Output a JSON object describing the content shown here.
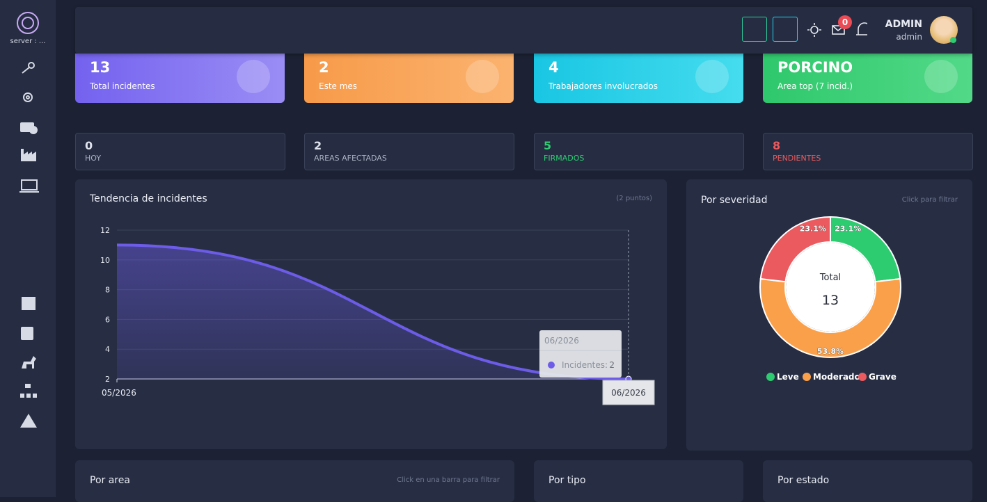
{
  "sidebar": {
    "server_label": "server : ..."
  },
  "header": {
    "notifications": 0,
    "user_name": "ADMIN",
    "user_role": "admin"
  },
  "kpi_cards": [
    {
      "value": 13,
      "label": "Total incidentes"
    },
    {
      "value": 2,
      "label": "Este mes"
    },
    {
      "value": 4,
      "label": "Trabajadores involucrados"
    },
    {
      "value": "PORCINO",
      "label": "Area top (7 incid.)"
    }
  ],
  "stat_boxes": [
    {
      "value": 0,
      "label": "HOY"
    },
    {
      "value": 2,
      "label": "AREAS AFECTADAS"
    },
    {
      "value": 5,
      "label": "FIRMADOS"
    },
    {
      "value": 8,
      "label": "PENDIENTES"
    }
  ],
  "chart_data": [
    {
      "type": "area",
      "title": "Tendencia de incidentes",
      "note": "(2 puntos)",
      "x": [
        "05/2026",
        "06/2026"
      ],
      "series": [
        {
          "name": "Incidentes",
          "color": "#6c5ce7",
          "values": [
            11,
            2
          ]
        }
      ],
      "ylim": [
        2,
        12
      ],
      "yticks": [
        2,
        4,
        6,
        8,
        10,
        12
      ],
      "grid": true,
      "tooltip": {
        "title": "06/2026",
        "label": "Incidentes:",
        "value": 2
      }
    },
    {
      "type": "donut",
      "title": "Por severidad",
      "note": "Click para filtrar",
      "center_label": "Total",
      "center_value": 13,
      "categories": [
        "Leve",
        "Moderado",
        "Grave"
      ],
      "values": [
        23.1,
        53.8,
        23.1
      ],
      "value_labels": [
        "23.1%",
        "53.8%",
        "23.1%"
      ],
      "colors": [
        "#2ecc71",
        "#fba04a",
        "#eb5a5e"
      ]
    }
  ],
  "bottom_panels": [
    {
      "title": "Por area",
      "note": "Click en una barra para filtrar"
    },
    {
      "title": "Por tipo"
    },
    {
      "title": "Por estado"
    }
  ]
}
